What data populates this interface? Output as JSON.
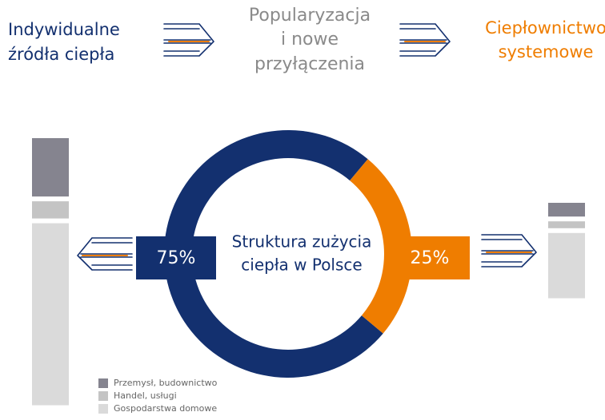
{
  "header": {
    "left": [
      "Indywidualne",
      "źródła ciepła"
    ],
    "middle": [
      "Popularyzacja",
      "i nowe",
      "przyłączenia"
    ],
    "right": [
      "Ciepłownictwo",
      "systemowe"
    ]
  },
  "chart_data": [
    {
      "type": "donut",
      "title": [
        "Struktura zużycia",
        "ciepła w Polsce"
      ],
      "values": [
        75,
        25
      ],
      "value_labels": [
        "75%",
        "25%"
      ],
      "colors": [
        "#13306f",
        "#ef7d00"
      ]
    },
    {
      "type": "stacked_bar",
      "series": [
        {
          "name": "Przemysł, budownictwo",
          "color": "#85848f",
          "values": [
            17,
            4
          ]
        },
        {
          "name": "Handel, usługi",
          "color": "#c4c4c4",
          "values": [
            5,
            2
          ]
        },
        {
          "name": "Gospodarstwa domowe",
          "color": "#dadada",
          "values": [
            53,
            19
          ]
        }
      ]
    }
  ]
}
